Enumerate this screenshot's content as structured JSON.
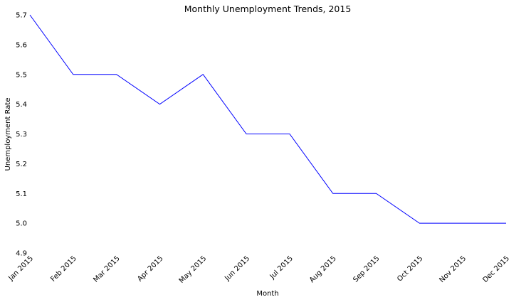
{
  "chart_data": {
    "type": "line",
    "title": "Monthly Unemployment Trends, 2015",
    "xlabel": "Month",
    "ylabel": "Unemployment Rate",
    "ylim": [
      4.9,
      5.7
    ],
    "yticks": [
      "4.9",
      "5.0",
      "5.1",
      "5.2",
      "5.3",
      "5.4",
      "5.5",
      "5.6",
      "5.7"
    ],
    "grid": false,
    "categories": [
      "Jan 2015",
      "Feb 2015",
      "Mar 2015",
      "Apr 2015",
      "May 2015",
      "Jun 2015",
      "Jul 2015",
      "Aug 2015",
      "Sep 2015",
      "Oct 2015",
      "Nov 2015",
      "Dec 2015"
    ],
    "series": [
      {
        "values": [
          5.7,
          5.5,
          5.5,
          5.4,
          5.5,
          5.3,
          5.3,
          5.1,
          5.1,
          5.0,
          5.0,
          5.0
        ],
        "color": "#0000ff"
      }
    ]
  }
}
